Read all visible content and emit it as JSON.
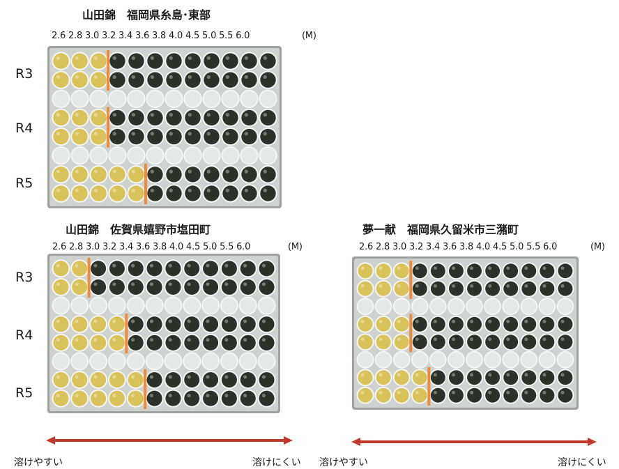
{
  "colors": {
    "accent_line": "#f08a3c",
    "arrow": "#c0392b",
    "yellow_well": "#d9c25a",
    "dark_well": "#2b3328",
    "clear_well": "#e4e8e6",
    "plate_frame": "#c9ccca"
  },
  "concentration_scale": "2.6 2.8 3.0 3.2 3.4 3.6 3.8 4.0 4.5 5.0 5.5 6.0",
  "unit_label": "(M)",
  "plates": [
    {
      "id": "p1",
      "title": "山田錦　福岡県糸島･東部",
      "row_labels": [
        "R3",
        "R4",
        "R5"
      ],
      "dissolved_count": [
        3,
        3,
        5
      ]
    },
    {
      "id": "p2",
      "title": "山田錦　佐賀県嬉野市塩田町",
      "row_labels": [
        "R3",
        "R4",
        "R5"
      ],
      "dissolved_count": [
        2,
        4,
        5
      ]
    },
    {
      "id": "p3",
      "title": "夢一献　福岡県久留米市三潴町",
      "row_labels": [],
      "dissolved_count": [
        3,
        3,
        4
      ]
    }
  ],
  "legend": {
    "left": {
      "easy": "溶けやすい",
      "hard": "溶けにくい"
    },
    "right": {
      "easy": "溶けやすい",
      "hard": "溶けにくい"
    }
  }
}
